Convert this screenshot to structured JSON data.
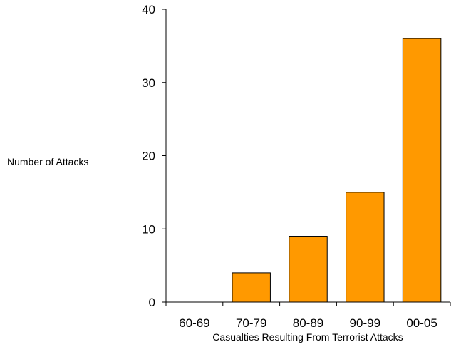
{
  "chart_data": {
    "type": "bar",
    "title": "",
    "xlabel": "Casualties Resulting From Terrorist Attacks",
    "ylabel": "Number of Attacks",
    "categories": [
      "60-69",
      "70-79",
      "80-89",
      "90-99",
      "00-05"
    ],
    "values": [
      0,
      4,
      9,
      15,
      36
    ],
    "ylim": [
      0,
      40
    ],
    "yticks": [
      "0",
      "10",
      "20",
      "30",
      "40"
    ],
    "grid": false,
    "legend": "none",
    "bar_color": "#ff9900",
    "bar_edge_color": "#000000"
  }
}
